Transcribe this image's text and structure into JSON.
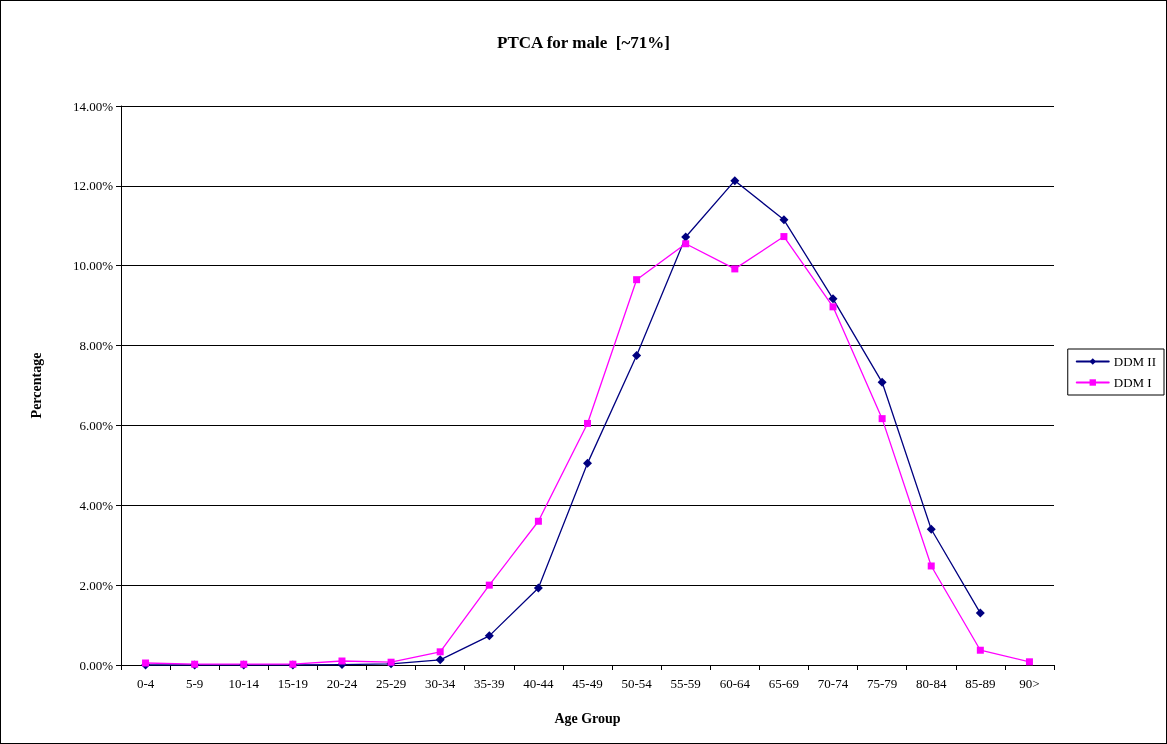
{
  "chart_data": {
    "type": "line",
    "title": "PTCA for male  [~71%]",
    "xlabel": "Age Group",
    "ylabel": "Percentage",
    "categories": [
      "0-4",
      "5-9",
      "10-14",
      "15-19",
      "20-24",
      "25-29",
      "30-34",
      "35-39",
      "40-44",
      "45-49",
      "50-54",
      "55-59",
      "60-64",
      "65-69",
      "70-74",
      "75-79",
      "80-84",
      "85-89",
      "90>"
    ],
    "series": [
      {
        "name": "DDM II",
        "color": "#000080",
        "marker": "diamond",
        "values": [
          0,
          0,
          0,
          0,
          0.01,
          0.03,
          0.13,
          0.73,
          1.93,
          5.05,
          7.75,
          10.72,
          12.13,
          11.15,
          9.17,
          7.08,
          3.4,
          1.3,
          null
        ]
      },
      {
        "name": "DDM I",
        "color": "#ff00ff",
        "marker": "square",
        "values": [
          0.05,
          0.02,
          0.02,
          0.02,
          0.1,
          0.07,
          0.33,
          2.0,
          3.6,
          6.05,
          9.65,
          10.55,
          9.92,
          10.73,
          8.97,
          6.17,
          2.48,
          0.37,
          0.08
        ]
      }
    ],
    "ylim": [
      0,
      14
    ],
    "yticks": [
      {
        "value": 0,
        "label": "0.00%"
      },
      {
        "value": 2,
        "label": "2.00%"
      },
      {
        "value": 4,
        "label": "4.00%"
      },
      {
        "value": 6,
        "label": "6.00%"
      },
      {
        "value": 8,
        "label": "8.00%"
      },
      {
        "value": 10,
        "label": "10.00%"
      },
      {
        "value": 12,
        "label": "12.00%"
      },
      {
        "value": 14,
        "label": "14.00%"
      }
    ],
    "grid": "y",
    "legend": "right",
    "line_style": "solid"
  }
}
